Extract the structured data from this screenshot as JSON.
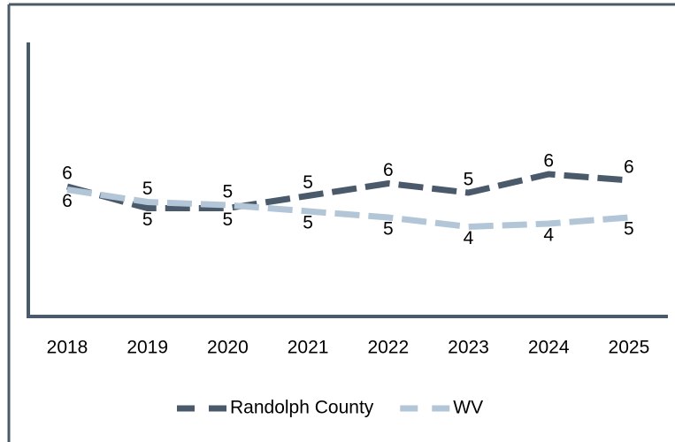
{
  "chart_data": {
    "type": "line",
    "categories": [
      "2018",
      "2019",
      "2020",
      "2021",
      "2022",
      "2023",
      "2024",
      "2025"
    ],
    "series": [
      {
        "name": "Randolph County",
        "color": "#4a5a6a",
        "values": [
          5.6,
          4.9,
          4.9,
          5.3,
          5.7,
          5.4,
          6.0,
          5.8
        ],
        "value_labels": [
          "6",
          "5",
          "5",
          "5",
          "6",
          "5",
          "6",
          "6"
        ]
      },
      {
        "name": "WV",
        "color": "#b3c6d8",
        "values": [
          5.5,
          5.1,
          5.0,
          4.8,
          4.6,
          4.3,
          4.4,
          4.6
        ],
        "value_labels": [
          "6",
          "5",
          "5",
          "5",
          "5",
          "4",
          "4",
          "5"
        ]
      }
    ],
    "ylim": [
      1.4,
      10.2
    ],
    "legend": "bottom"
  }
}
